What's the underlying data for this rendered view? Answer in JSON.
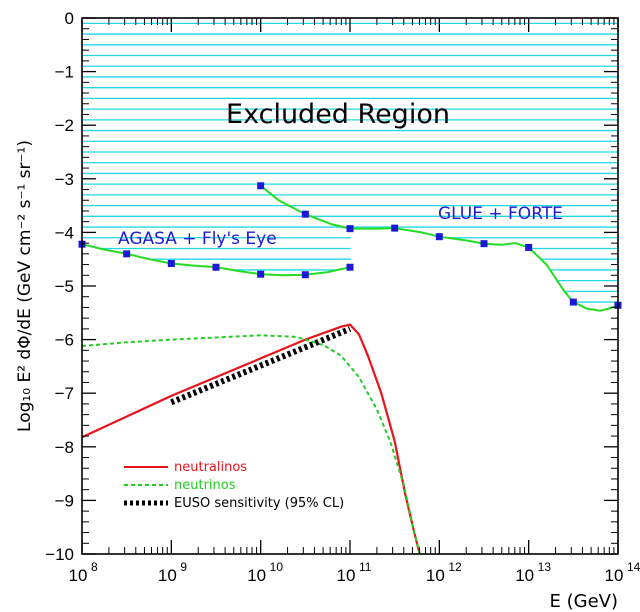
{
  "chart_data": {
    "type": "line",
    "xlabel": "E (GeV)",
    "ylabel": "Log₁₀ E² dΦ/dE  (GeV cm⁻² s⁻¹ sr⁻¹)",
    "xscale": "log",
    "xlim_exp": [
      8,
      14
    ],
    "ylim": [
      -10,
      0
    ],
    "xtick_labels": [
      "10",
      "10",
      "10",
      "10",
      "10",
      "10",
      "10"
    ],
    "xtick_exponents": [
      "8",
      "9",
      "10",
      "11",
      "12",
      "13",
      "14"
    ],
    "ytick_labels": [
      "0",
      "−1",
      "−2",
      "−3",
      "−4",
      "−5",
      "−6",
      "−7",
      "−8",
      "−9",
      "−10"
    ],
    "annotations": {
      "excluded": "Excluded Region",
      "agasa": "AGASA + Fly's Eye",
      "glue": "GLUE + FORTE"
    },
    "legend_position": "bottom-left",
    "series": [
      {
        "name": "neutralinos",
        "color": "#e8141c",
        "style": "solid",
        "points": [
          [
            8.0,
            -7.82
          ],
          [
            9.0,
            -7.05
          ],
          [
            10.0,
            -6.35
          ],
          [
            10.5,
            -6.0
          ],
          [
            10.9,
            -5.76
          ],
          [
            11.0,
            -5.72
          ],
          [
            11.1,
            -5.9
          ],
          [
            11.2,
            -6.3
          ],
          [
            11.35,
            -7.0
          ],
          [
            11.5,
            -7.9
          ],
          [
            11.62,
            -8.9
          ],
          [
            11.72,
            -9.6
          ],
          [
            11.78,
            -10.0
          ]
        ]
      },
      {
        "name": "neutrinos",
        "color": "#22cc22",
        "style": "dashed",
        "points": [
          [
            8.0,
            -6.12
          ],
          [
            8.5,
            -6.05
          ],
          [
            9.0,
            -6.0
          ],
          [
            9.5,
            -5.96
          ],
          [
            10.0,
            -5.92
          ],
          [
            10.4,
            -5.95
          ],
          [
            10.7,
            -6.1
          ],
          [
            10.9,
            -6.3
          ],
          [
            11.1,
            -6.7
          ],
          [
            11.3,
            -7.3
          ],
          [
            11.45,
            -7.9
          ],
          [
            11.6,
            -8.7
          ],
          [
            11.72,
            -9.6
          ],
          [
            11.78,
            -10.0
          ]
        ]
      },
      {
        "name": "EUSO sensitivity (95% CL)",
        "color": "#000000",
        "style": "thick-dashed",
        "points": [
          [
            9.0,
            -7.17
          ],
          [
            11.0,
            -5.8
          ]
        ]
      }
    ],
    "agasa_points": [
      [
        8.0,
        -4.22
      ],
      [
        8.5,
        -4.4
      ],
      [
        9.0,
        -4.58
      ],
      [
        9.5,
        -4.65
      ],
      [
        10.0,
        -4.78
      ],
      [
        10.5,
        -4.79
      ],
      [
        11.0,
        -4.65
      ]
    ],
    "glue_points": [
      [
        10.0,
        -3.13
      ],
      [
        10.5,
        -3.66
      ],
      [
        11.0,
        -3.93
      ],
      [
        11.5,
        -3.92
      ],
      [
        12.0,
        -4.08
      ],
      [
        12.5,
        -4.21
      ],
      [
        13.0,
        -4.28
      ],
      [
        13.5,
        -5.3
      ],
      [
        14.0,
        -5.36
      ]
    ],
    "glue_curve": [
      [
        10.0,
        -3.13
      ],
      [
        10.2,
        -3.4
      ],
      [
        10.5,
        -3.66
      ],
      [
        10.8,
        -3.85
      ],
      [
        11.0,
        -3.93
      ],
      [
        11.3,
        -3.93
      ],
      [
        11.5,
        -3.92
      ],
      [
        11.8,
        -4.0
      ],
      [
        12.0,
        -4.08
      ],
      [
        12.3,
        -4.15
      ],
      [
        12.5,
        -4.21
      ],
      [
        12.7,
        -4.23
      ],
      [
        12.85,
        -4.2
      ],
      [
        13.0,
        -4.28
      ],
      [
        13.2,
        -4.6
      ],
      [
        13.4,
        -5.1
      ],
      [
        13.5,
        -5.3
      ],
      [
        13.65,
        -5.42
      ],
      [
        13.8,
        -5.46
      ],
      [
        13.9,
        -5.42
      ],
      [
        14.0,
        -5.36
      ]
    ],
    "agasa_curve": [
      [
        8.0,
        -4.22
      ],
      [
        8.25,
        -4.32
      ],
      [
        8.5,
        -4.4
      ],
      [
        8.75,
        -4.5
      ],
      [
        9.0,
        -4.58
      ],
      [
        9.25,
        -4.62
      ],
      [
        9.5,
        -4.65
      ],
      [
        9.75,
        -4.72
      ],
      [
        10.0,
        -4.78
      ],
      [
        10.25,
        -4.8
      ],
      [
        10.5,
        -4.79
      ],
      [
        10.75,
        -4.74
      ],
      [
        11.0,
        -4.65
      ]
    ],
    "colors": {
      "hatch": "#22d7e8",
      "curve": "#22dd22",
      "marker": "#1a1ad6",
      "annotation_blue": "#1a1ad6"
    }
  }
}
